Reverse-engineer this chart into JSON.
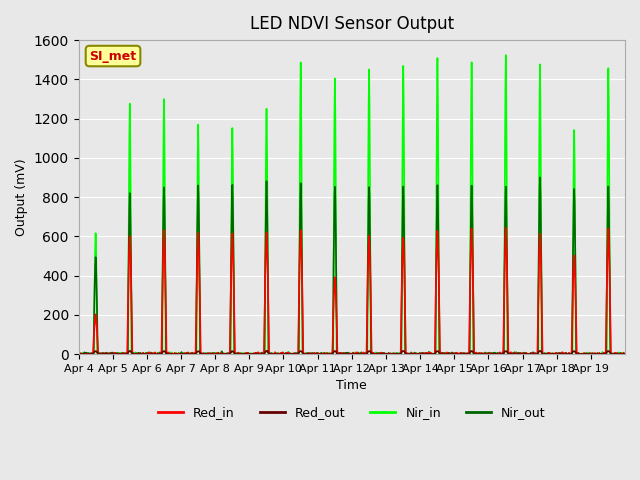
{
  "title": "LED NDVI Sensor Output",
  "xlabel": "Time",
  "ylabel": "Output (mV)",
  "ylim": [
    0,
    1600
  ],
  "yticks": [
    0,
    200,
    400,
    600,
    800,
    1000,
    1200,
    1400,
    1600
  ],
  "background_color": "#e8e8e8",
  "plot_bg_color": "#e8e8e8",
  "annotation_text": "SI_met",
  "annotation_color": "#cc0000",
  "annotation_bg": "#ffff99",
  "annotation_border": "#888800",
  "series": {
    "Red_in": {
      "color": "#ff0000",
      "lw": 1.2
    },
    "Red_out": {
      "color": "#660000",
      "lw": 1.2
    },
    "Nir_in": {
      "color": "#00ff00",
      "lw": 1.2
    },
    "Nir_out": {
      "color": "#006600",
      "lw": 1.2
    }
  },
  "x_day_labels": [
    "Apr 4",
    "Apr 5",
    "Apr 6",
    "Apr 7",
    "Apr 8",
    "Apr 9",
    "Apr 10",
    "Apr 11",
    "Apr 12",
    "Apr 13",
    "Apr 14",
    "Apr 15",
    "Apr 16",
    "Apr 17",
    "Apr 18",
    "Apr 19"
  ],
  "n_days": 16,
  "red_in_peaks": [
    200,
    600,
    630,
    620,
    610,
    620,
    635,
    390,
    600,
    600,
    630,
    635,
    640,
    615,
    510,
    640
  ],
  "nir_in_peaks": [
    620,
    1280,
    1300,
    1170,
    1150,
    1250,
    1480,
    1400,
    1450,
    1470,
    1500,
    1480,
    1530,
    1480,
    1140,
    1460
  ],
  "nir_out_peaks": [
    500,
    820,
    850,
    860,
    865,
    885,
    875,
    855,
    850,
    855,
    860,
    860,
    855,
    900,
    840,
    855
  ]
}
